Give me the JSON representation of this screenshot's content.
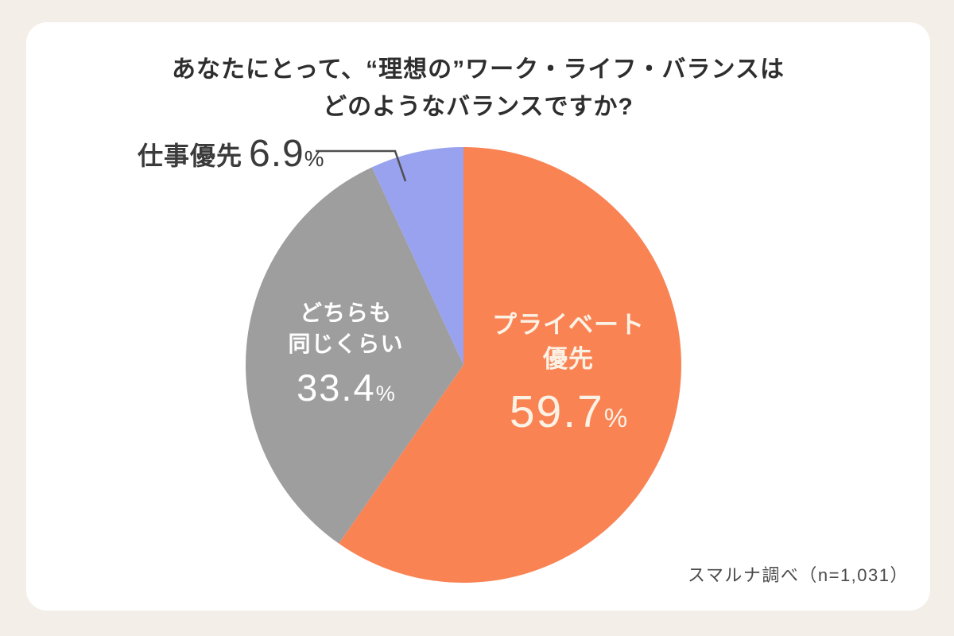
{
  "title": {
    "line1": "あなたにとって、“理想の”ワーク・ライフ・バランスは",
    "line2": "どのようなバランスですか?"
  },
  "source_note": "スマルナ調べ（n=1,031）",
  "colors": {
    "page_background": "#F4EEE8",
    "card_background": "#FFFFFF",
    "title_text": "#2E2E2E",
    "source_text": "#4A4A4A",
    "callout_line": "#4F4F4F"
  },
  "chart_data": {
    "type": "pie",
    "title": "あなたにとって、“理想の”ワーク・ライフ・バランスはどのようなバランスですか?",
    "sample_note": "スマルナ調べ（n=1,031）",
    "start_angle": "12 o'clock, clockwise",
    "legend_position": "labels on/beside slices",
    "slices": [
      {
        "label": "プライベート優先",
        "label_lines": [
          "プライベート",
          "優先"
        ],
        "value": "59.7",
        "unit": "%",
        "color": "#FA8354",
        "label_color": "#FBF2E6",
        "label_placement": "inside"
      },
      {
        "label": "どちらも同じくらい",
        "label_lines": [
          "どちらも",
          "同じくらい"
        ],
        "value": "33.4",
        "unit": "%",
        "color": "#9E9E9E",
        "label_color": "#FFFFFF",
        "label_placement": "inside"
      },
      {
        "label": "仕事優先",
        "value": "6.9",
        "unit": "%",
        "color": "#98A2EE",
        "label_color": "#3B3B3B",
        "label_placement": "outside-callout"
      }
    ]
  }
}
